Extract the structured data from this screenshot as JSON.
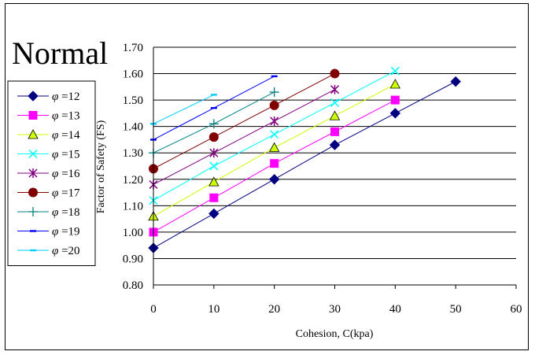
{
  "chart_data": {
    "type": "line",
    "title": "Normal",
    "xlabel": "Cohesion, C(kpa)",
    "ylabel": "Factor of Safety (FS)",
    "xlim": [
      0,
      60
    ],
    "ylim": [
      0.8,
      1.7
    ],
    "xticks": [
      "0",
      "10",
      "20",
      "30",
      "40",
      "50",
      "60"
    ],
    "yticks": [
      "0.80",
      "0.90",
      "1.00",
      "1.10",
      "1.20",
      "1.30",
      "1.40",
      "1.50",
      "1.60",
      "1.70"
    ],
    "grid": "horizontal",
    "legend_position": "left",
    "legend_prefix": "φ",
    "series": [
      {
        "name": "=12",
        "color": "#000080",
        "marker": "diamond",
        "x": [
          0,
          10,
          20,
          30,
          40,
          50
        ],
        "y": [
          0.94,
          1.07,
          1.2,
          1.33,
          1.45,
          1.57
        ]
      },
      {
        "name": "=13",
        "color": "#ff00ff",
        "marker": "square",
        "x": [
          0,
          10,
          20,
          30,
          40
        ],
        "y": [
          1.0,
          1.13,
          1.26,
          1.38,
          1.5
        ]
      },
      {
        "name": "=14",
        "color": "#ccff00",
        "marker": "triangle",
        "x": [
          0,
          10,
          20,
          30,
          40
        ],
        "y": [
          1.06,
          1.19,
          1.32,
          1.44,
          1.56
        ]
      },
      {
        "name": "=15",
        "color": "#00ffff",
        "marker": "x",
        "x": [
          0,
          10,
          20,
          30,
          40
        ],
        "y": [
          1.12,
          1.25,
          1.37,
          1.49,
          1.61
        ]
      },
      {
        "name": "=16",
        "color": "#800080",
        "marker": "star",
        "x": [
          0,
          10,
          20,
          30
        ],
        "y": [
          1.18,
          1.3,
          1.42,
          1.54
        ]
      },
      {
        "name": "=17",
        "color": "#800000",
        "marker": "circle",
        "x": [
          0,
          10,
          20,
          30
        ],
        "y": [
          1.24,
          1.36,
          1.48,
          1.6
        ]
      },
      {
        "name": "=18",
        "color": "#008080",
        "marker": "plus",
        "x": [
          0,
          10,
          20
        ],
        "y": [
          1.3,
          1.41,
          1.53
        ]
      },
      {
        "name": "=19",
        "color": "#0000ff",
        "marker": "dash",
        "x": [
          0,
          10,
          20
        ],
        "y": [
          1.35,
          1.47,
          1.59
        ]
      },
      {
        "name": "=20",
        "color": "#00ccff",
        "marker": "dash",
        "x": [
          0,
          10
        ],
        "y": [
          1.41,
          1.52
        ]
      }
    ]
  }
}
